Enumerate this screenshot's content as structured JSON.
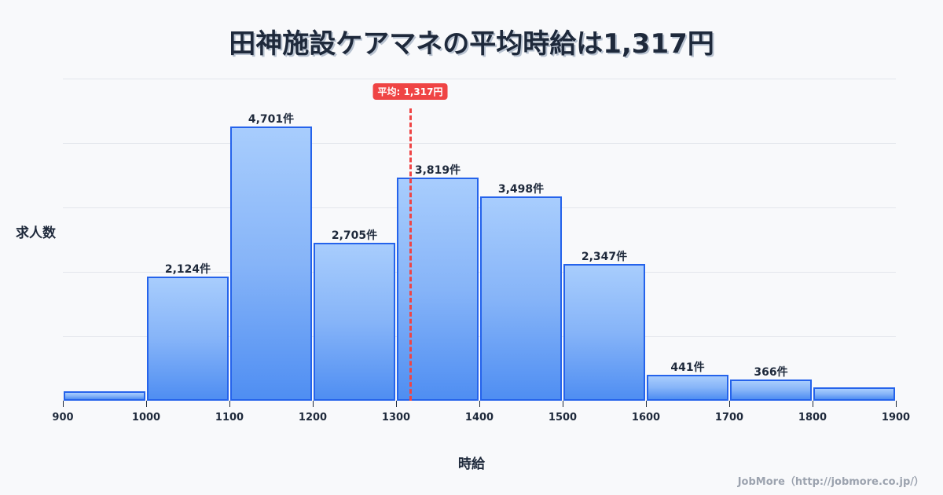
{
  "title": "田神施設ケアマネの平均時給は1,317円",
  "mean_badge": "平均: 1,317円",
  "ylabel": "求人数",
  "xlabel": "時給",
  "credit": "JobMore（http://jobmore.co.jp/）",
  "colors": {
    "bar_border": "#2563eb",
    "bar_top": "#a8cdfd",
    "bar_bottom": "#4f8ef2",
    "mean_line": "#ef4444",
    "text": "#1e293b",
    "background": "#f8f9fb"
  },
  "chart_data": {
    "type": "bar",
    "title": "田神施設ケアマネの平均時給は1,317円",
    "xlabel": "時給",
    "ylabel": "求人数",
    "categories": [
      "900-1000",
      "1000-1100",
      "1100-1200",
      "1200-1300",
      "1300-1400",
      "1400-1500",
      "1500-1600",
      "1600-1700",
      "1700-1800",
      "1800-1900"
    ],
    "values": [
      150,
      2124,
      4701,
      2705,
      3819,
      3498,
      2347,
      441,
      366,
      230
    ],
    "labels": [
      "",
      "2,124件",
      "4,701件",
      "2,705件",
      "3,819件",
      "3,498件",
      "2,347件",
      "441件",
      "366件",
      ""
    ],
    "x_ticks": [
      "900",
      "1000",
      "1100",
      "1200",
      "1300",
      "1400",
      "1500",
      "1600",
      "1700",
      "1800",
      "1900"
    ],
    "xlim": [
      900,
      1900
    ],
    "ylim": [
      0,
      5500
    ],
    "mean": 1317,
    "mean_label": "平均: 1,317円",
    "grid": true,
    "legend": "none"
  }
}
